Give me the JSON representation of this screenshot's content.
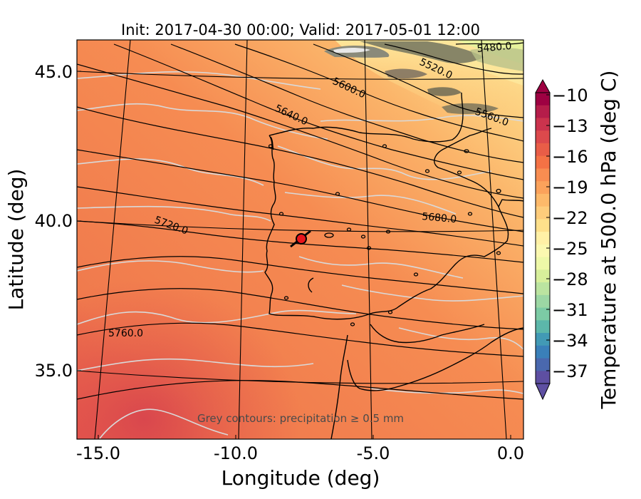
{
  "title": "Init: 2017-04-30 00:00; Valid: 2017-05-01 12:00",
  "x_axis": {
    "label": "Longitude (deg)",
    "ticks": [
      {
        "value": -15.0,
        "text": "-15.0"
      },
      {
        "value": -10.0,
        "text": "-10.0"
      },
      {
        "value": -5.0,
        "text": "-5.0"
      },
      {
        "value": 0.0,
        "text": "0.0"
      }
    ]
  },
  "y_axis": {
    "label": "Latitude (deg)",
    "ticks": [
      {
        "value": 45.0,
        "text": "45.0"
      },
      {
        "value": 40.0,
        "text": "40.0"
      },
      {
        "value": 35.0,
        "text": "35.0"
      }
    ]
  },
  "colorbar": {
    "label": "Temperature at 500.0 hPa (deg C)",
    "ticks": [
      "−10",
      "−13",
      "−16",
      "−19",
      "−22",
      "−25",
      "−28",
      "−31",
      "−34",
      "−37"
    ],
    "extend": "both",
    "colormap": "Spectral"
  },
  "contour_labels": [
    {
      "text": "5480.0"
    },
    {
      "text": "5520.0"
    },
    {
      "text": "5560.0"
    },
    {
      "text": "5600.0"
    },
    {
      "text": "5640.0"
    },
    {
      "text": "5680.0"
    },
    {
      "text": "5720.0"
    },
    {
      "text": "5760.0"
    }
  ],
  "annotation": "Grey contours: precipitation ≥ 0.5 mm",
  "marker": {
    "lon": -7.6,
    "lat": 39.4,
    "color": "#e8141c"
  },
  "colors": {
    "land_outline": "#000000",
    "precip_contour": "#d9d9d9",
    "gridline": "#000000"
  }
}
